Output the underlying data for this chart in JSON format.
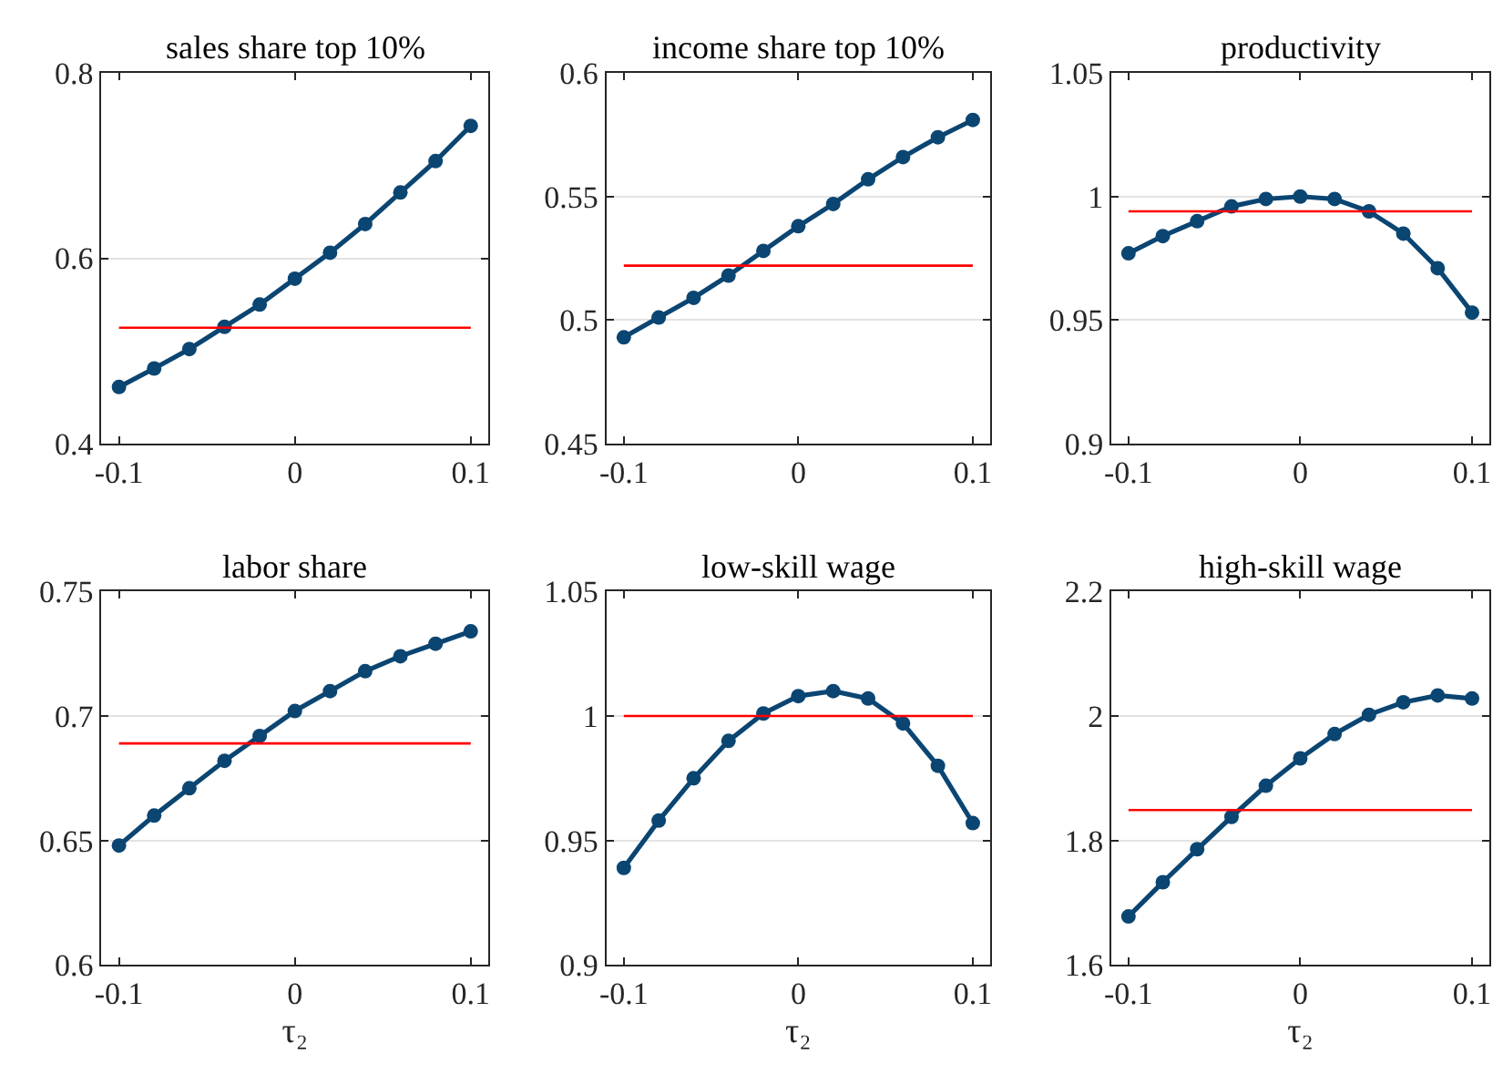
{
  "chart_data": [
    {
      "type": "line",
      "title": "sales share top 10%",
      "x": [
        -0.1,
        -0.08,
        -0.06,
        -0.04,
        -0.02,
        0,
        0.02,
        0.04,
        0.06,
        0.08,
        0.1
      ],
      "series": [
        {
          "color": "#0b4572",
          "values": [
            0.461,
            0.481,
            0.502,
            0.526,
            0.55,
            0.578,
            0.606,
            0.637,
            0.671,
            0.705,
            0.743
          ]
        }
      ],
      "xlim": [
        -0.11,
        0.11
      ],
      "xticks": [
        -0.1,
        0,
        0.1
      ],
      "ylim": [
        0.4,
        0.8
      ],
      "yticks": [
        0.4,
        0.6,
        0.8
      ],
      "grid": "y",
      "marker": "circle",
      "ref_lines": [
        {
          "axis": "y",
          "value": 0.525,
          "color": "#ff0000"
        }
      ]
    },
    {
      "type": "line",
      "title": "income share top 10%",
      "x": [
        -0.1,
        -0.08,
        -0.06,
        -0.04,
        -0.02,
        0,
        0.02,
        0.04,
        0.06,
        0.08,
        0.1
      ],
      "series": [
        {
          "color": "#0b4572",
          "values": [
            0.493,
            0.501,
            0.509,
            0.518,
            0.528,
            0.538,
            0.547,
            0.557,
            0.566,
            0.574,
            0.581
          ]
        }
      ],
      "xlim": [
        -0.11,
        0.11
      ],
      "xticks": [
        -0.1,
        0,
        0.1
      ],
      "ylim": [
        0.45,
        0.6
      ],
      "yticks": [
        0.45,
        0.5,
        0.55,
        0.6
      ],
      "grid": "y",
      "marker": "circle",
      "ref_lines": [
        {
          "axis": "y",
          "value": 0.522,
          "color": "#ff0000"
        }
      ]
    },
    {
      "type": "line",
      "title": "productivity",
      "x": [
        -0.1,
        -0.08,
        -0.06,
        -0.04,
        -0.02,
        0,
        0.02,
        0.04,
        0.06,
        0.08,
        0.1
      ],
      "series": [
        {
          "color": "#0b4572",
          "values": [
            0.977,
            0.984,
            0.99,
            0.996,
            0.999,
            1.0,
            0.999,
            0.994,
            0.985,
            0.971,
            0.953
          ]
        }
      ],
      "xlim": [
        -0.11,
        0.11
      ],
      "xticks": [
        -0.1,
        0,
        0.1
      ],
      "ylim": [
        0.9,
        1.05
      ],
      "yticks": [
        0.9,
        0.95,
        1,
        1.05
      ],
      "grid": "y",
      "marker": "circle",
      "ref_lines": [
        {
          "axis": "y",
          "value": 0.994,
          "color": "#ff0000"
        }
      ]
    },
    {
      "type": "line",
      "title": "labor share",
      "xlabel": "τ₂",
      "x": [
        -0.1,
        -0.08,
        -0.06,
        -0.04,
        -0.02,
        0,
        0.02,
        0.04,
        0.06,
        0.08,
        0.1
      ],
      "series": [
        {
          "color": "#0b4572",
          "values": [
            0.648,
            0.66,
            0.671,
            0.682,
            0.692,
            0.702,
            0.71,
            0.718,
            0.724,
            0.729,
            0.734
          ]
        }
      ],
      "xlim": [
        -0.11,
        0.11
      ],
      "xticks": [
        -0.1,
        0,
        0.1
      ],
      "ylim": [
        0.6,
        0.75
      ],
      "yticks": [
        0.6,
        0.65,
        0.7,
        0.75
      ],
      "grid": "y",
      "marker": "circle",
      "ref_lines": [
        {
          "axis": "y",
          "value": 0.689,
          "color": "#ff0000"
        }
      ]
    },
    {
      "type": "line",
      "title": "low-skill wage",
      "xlabel": "τ₂",
      "x": [
        -0.1,
        -0.08,
        -0.06,
        -0.04,
        -0.02,
        0,
        0.02,
        0.04,
        0.06,
        0.08,
        0.1
      ],
      "series": [
        {
          "color": "#0b4572",
          "values": [
            0.939,
            0.958,
            0.975,
            0.99,
            1.001,
            1.008,
            1.01,
            1.007,
            0.997,
            0.98,
            0.957
          ]
        }
      ],
      "xlim": [
        -0.11,
        0.11
      ],
      "xticks": [
        -0.1,
        0,
        0.1
      ],
      "ylim": [
        0.9,
        1.05
      ],
      "yticks": [
        0.9,
        0.95,
        1,
        1.05
      ],
      "grid": "y",
      "marker": "circle",
      "ref_lines": [
        {
          "axis": "y",
          "value": 1.0,
          "color": "#ff0000"
        }
      ]
    },
    {
      "type": "line",
      "title": "high-skill wage",
      "xlabel": "τ₂",
      "x": [
        -0.1,
        -0.08,
        -0.06,
        -0.04,
        -0.02,
        0,
        0.02,
        0.04,
        0.06,
        0.08,
        0.1
      ],
      "series": [
        {
          "color": "#0b4572",
          "values": [
            1.678,
            1.733,
            1.786,
            1.838,
            1.888,
            1.932,
            1.971,
            2.002,
            2.022,
            2.033,
            2.028
          ]
        }
      ],
      "xlim": [
        -0.11,
        0.11
      ],
      "xticks": [
        -0.1,
        0,
        0.1
      ],
      "ylim": [
        1.6,
        2.2
      ],
      "yticks": [
        1.6,
        1.8,
        2,
        2.2
      ],
      "grid": "y",
      "marker": "circle",
      "ref_lines": [
        {
          "axis": "y",
          "value": 1.849,
          "color": "#ff0000"
        }
      ]
    }
  ]
}
